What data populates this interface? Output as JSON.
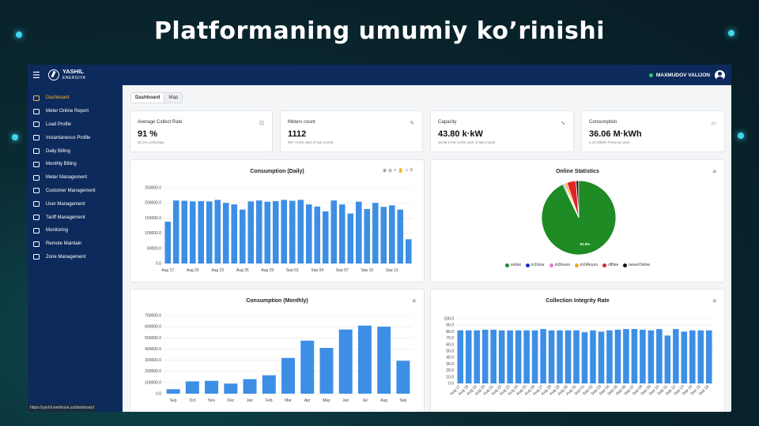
{
  "slide": {
    "title": "Platformaning umumiy ko’rinishi"
  },
  "app": {
    "logo_line1": "YASHIL",
    "logo_line2": "ENERGIYA",
    "user_name": "MAXMUDOV VALIJON",
    "status_url": "https://yashil.webhook.uz/dashboard",
    "accent_color": "#f2b63d",
    "nav_color": "#0d2a5c"
  },
  "sidebar": {
    "items": [
      {
        "label": "Dashboard",
        "icon": "dashboard-icon"
      },
      {
        "label": "Meter Online Report",
        "icon": "monitor-icon"
      },
      {
        "label": "Load Profile",
        "icon": "chart-icon"
      },
      {
        "label": "Instantaneous Profile",
        "icon": "line-chart-icon"
      },
      {
        "label": "Daily Billing",
        "icon": "document-icon"
      },
      {
        "label": "Monthly Billing",
        "icon": "bar-chart-icon"
      },
      {
        "label": "Meter Management",
        "icon": "gauge-icon"
      },
      {
        "label": "Customer Management",
        "icon": "customers-icon"
      },
      {
        "label": "User Management",
        "icon": "user-icon"
      },
      {
        "label": "Tariff Management",
        "icon": "tariff-icon"
      },
      {
        "label": "Monitoring",
        "icon": "monitoring-icon"
      },
      {
        "label": "Remote Maintain",
        "icon": "remote-icon"
      },
      {
        "label": "Zone Management",
        "icon": "zone-icon"
      }
    ]
  },
  "tabs": [
    "Dashboard",
    "Map"
  ],
  "stats": [
    {
      "title": "Average Collect Rate",
      "value": "91 %",
      "sub": "90.2% yesterday",
      "icon": "report-icon"
    },
    {
      "title": "Meters count",
      "value": "1112",
      "sub": "997 At the start of last month",
      "icon": "edit-icon"
    },
    {
      "title": "Capacity",
      "value": "43.80 k·kW",
      "sub": "38.58 k·kW At the start of last month",
      "icon": "pulse-icon"
    },
    {
      "title": "Consumption",
      "value": "36.06 M·kWh",
      "sub": "4.43 MkWh Previous year",
      "icon": "card-icon"
    }
  ],
  "chart_data": [
    {
      "type": "bar",
      "title": "Consumption (Daily)",
      "categories": [
        "Aug 17",
        "Aug 18",
        "Aug 19",
        "Aug 20",
        "Aug 21",
        "Aug 22",
        "Aug 23",
        "Aug 24",
        "Aug 25",
        "Aug 26",
        "Aug 27",
        "Aug 28",
        "Aug 29",
        "Aug 30",
        "Aug 31",
        "Sep 01",
        "Sep 02",
        "Sep 03",
        "Sep 04",
        "Sep 05",
        "Sep 06",
        "Sep 07",
        "Sep 08",
        "Sep 09",
        "Sep 10",
        "Sep 11",
        "Sep 12",
        "Sep 13",
        "Sep 14",
        "Sep 15"
      ],
      "x_tick_labels": [
        "Aug 17",
        "Aug 20",
        "Aug 23",
        "Aug 26",
        "Aug 29",
        "Sep 01",
        "Sep 04",
        "Sep 07",
        "Sep 10",
        "Sep 13"
      ],
      "values": [
        138000,
        208000,
        207000,
        205000,
        206000,
        205000,
        210000,
        200000,
        195000,
        178000,
        205000,
        208000,
        204000,
        206000,
        210000,
        207000,
        210000,
        195000,
        188000,
        172000,
        208000,
        195000,
        165000,
        204000,
        180000,
        200000,
        187000,
        192000,
        178000,
        80000
      ],
      "yticks": [
        "0.0",
        "50000.0",
        "100000.0",
        "150000.0",
        "200000.0",
        "250000.0"
      ],
      "ylim": [
        0,
        250000
      ],
      "grid": true
    },
    {
      "type": "pie",
      "title": "Online Statistics",
      "labels": [
        "online",
        "in1hour",
        "in2hours",
        "in24hours",
        "offline",
        "neverOnline"
      ],
      "values": [
        92.9,
        0.5,
        0.5,
        1.0,
        4.0,
        1.1
      ],
      "colors": [
        "#1f8b24",
        "#1a2fc9",
        "#e27bd9",
        "#f5a623",
        "#e02424",
        "#111111"
      ],
      "slice_label": "92.9%"
    },
    {
      "type": "bar",
      "title": "Consumption (Monthly)",
      "categories": [
        "Sep",
        "Oct",
        "Nov",
        "Dec",
        "Jan",
        "Feb",
        "Mar",
        "Apr",
        "May",
        "Jun",
        "Jul",
        "Aug",
        "Sep"
      ],
      "values": [
        40000,
        110000,
        115000,
        90000,
        130000,
        165000,
        320000,
        475000,
        410000,
        575000,
        610000,
        600000,
        295000
      ],
      "yticks": [
        "0.0",
        "100000.0",
        "200000.0",
        "300000.0",
        "400000.0",
        "500000.0",
        "600000.0",
        "700000.0"
      ],
      "ylim": [
        0,
        700000
      ],
      "grid": true
    },
    {
      "type": "bar",
      "title": "Collection Integrity Rate",
      "categories": [
        "Aug 17",
        "Aug 18",
        "Aug 19",
        "Aug 20",
        "Aug 21",
        "Aug 22",
        "Aug 23",
        "Aug 24",
        "Aug 25",
        "Aug 26",
        "Aug 27",
        "Aug 28",
        "Aug 29",
        "Aug 30",
        "Aug 31",
        "Sep 01",
        "Sep 02",
        "Sep 03",
        "Sep 04",
        "Sep 05",
        "Sep 06",
        "Sep 07",
        "Sep 08",
        "Sep 09",
        "Sep 10",
        "Sep 11",
        "Sep 12",
        "Sep 13",
        "Sep 14",
        "Sep 15",
        "Sep 16"
      ],
      "values": [
        82,
        82,
        82,
        83,
        83,
        82,
        82,
        82,
        82,
        82,
        84,
        82,
        82,
        82,
        82,
        79,
        82,
        80,
        82,
        83,
        84,
        84,
        83,
        82,
        84,
        74,
        84,
        80,
        82,
        82,
        82
      ],
      "yticks": [
        "0.0",
        "10.0",
        "20.0",
        "30.0",
        "40.0",
        "50.0",
        "60.0",
        "70.0",
        "80.0",
        "90.0",
        "100.0"
      ],
      "ylim": [
        0,
        100
      ],
      "grid": true
    }
  ]
}
